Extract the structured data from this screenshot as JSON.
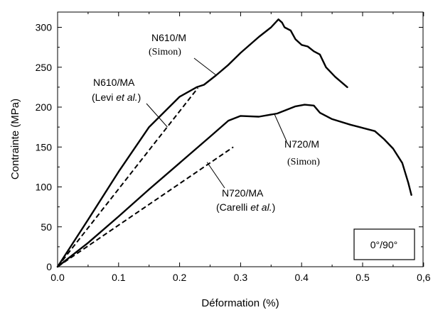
{
  "chart_data": {
    "type": "line",
    "xlabel": "Déformation (%)",
    "ylabel": "Contrainte (MPa)",
    "xlim": [
      0,
      0.6
    ],
    "ylim": [
      0,
      320
    ],
    "x_ticks": [
      "0.0",
      "0.1",
      "0.2",
      "0.3",
      "0.4",
      "0.5",
      "0,6"
    ],
    "x_tick_values": [
      0,
      0.1,
      0.2,
      0.3,
      0.4,
      0.5,
      0.6
    ],
    "y_ticks": [
      "0",
      "50",
      "100",
      "150",
      "200",
      "250",
      "300"
    ],
    "y_tick_values": [
      0,
      50,
      100,
      150,
      200,
      250,
      300
    ],
    "grid": false,
    "legend_box": "0°/90°",
    "series": [
      {
        "style": "solid",
        "x": [
          0,
          0.05,
          0.1,
          0.15,
          0.2,
          0.228,
          0.24,
          0.26,
          0.28,
          0.3,
          0.33,
          0.35,
          0.362,
          0.368,
          0.372,
          0.382,
          0.39,
          0.4,
          0.41,
          0.42,
          0.43,
          0.44,
          0.455,
          0.475
        ],
        "y": [
          0,
          59,
          119,
          175,
          213,
          225,
          228,
          240,
          253,
          268,
          288,
          300,
          310,
          306,
          300,
          296,
          285,
          278,
          276,
          270,
          266,
          250,
          238,
          225
        ]
      },
      {
        "style": "dashed",
        "x": [
          0,
          0.23
        ],
        "y": [
          0,
          224
        ]
      },
      {
        "style": "solid",
        "x": [
          0,
          0.05,
          0.1,
          0.15,
          0.2,
          0.25,
          0.28,
          0.3,
          0.33,
          0.36,
          0.39,
          0.405,
          0.42,
          0.43,
          0.45,
          0.48,
          0.5,
          0.52,
          0.535,
          0.55,
          0.565,
          0.575,
          0.58
        ],
        "y": [
          0,
          30,
          63,
          97,
          130,
          163,
          183,
          189,
          188,
          192,
          201,
          203,
          202,
          193,
          185,
          178,
          174,
          170,
          160,
          148,
          130,
          105,
          90
        ]
      },
      {
        "style": "dashed",
        "x": [
          0,
          0.288
        ],
        "y": [
          0,
          150
        ]
      }
    ],
    "annotations": [
      {
        "lines": [
          "N610/M",
          "(Simon)"
        ],
        "points_to": [
          0.26,
          240
        ]
      },
      {
        "lines": [
          "N610/MA",
          "(Levi et al.)"
        ],
        "points_to": [
          0.18,
          175
        ]
      },
      {
        "lines": [
          "N720/M",
          "(Simon)"
        ],
        "points_to": [
          0.355,
          192
        ]
      },
      {
        "lines": [
          "N720/MA",
          "(Carelli et al.)"
        ],
        "points_to": [
          0.245,
          131
        ]
      }
    ]
  }
}
